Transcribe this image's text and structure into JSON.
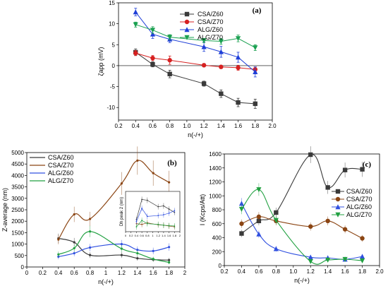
{
  "chart_data": [
    {
      "panel": "(a)",
      "type": "line",
      "xlabel": "n(-/+)",
      "ylabel": "ζapp (mV)",
      "xlim": [
        0.2,
        2.0
      ],
      "ylim": [
        -13,
        15
      ],
      "xticks": [
        0.2,
        0.4,
        0.6,
        0.8,
        1.0,
        1.2,
        1.4,
        1.6,
        1.8,
        2.0
      ],
      "yticks": [
        -10,
        -5,
        0,
        5,
        10,
        15
      ],
      "x": [
        0.4,
        0.6,
        0.8,
        1.2,
        1.4,
        1.6,
        1.8
      ],
      "legend_position": "top-center",
      "zero_line": true,
      "series": [
        {
          "name": "CSA/Z60",
          "color": "#3a3a3a",
          "marker": "square",
          "values": [
            3.2,
            0.3,
            -2.0,
            -4.3,
            -6.7,
            -8.8,
            -9.1
          ],
          "err": [
            0.8,
            0.6,
            0.9,
            0.6,
            0.9,
            1.0,
            1.1
          ]
        },
        {
          "name": "CSA/Z70",
          "color": "#d62020",
          "marker": "circle",
          "values": [
            3.0,
            1.8,
            1.3,
            0.1,
            -0.3,
            -0.5,
            -0.9
          ],
          "err": [
            0.6,
            0.6,
            1.0,
            0.4,
            0.4,
            0.6,
            0.6
          ]
        },
        {
          "name": "ALG/Z60",
          "color": "#1f3fd8",
          "marker": "triangle-up",
          "values": [
            12.8,
            7.5,
            6.3,
            4.5,
            3.3,
            2.0,
            -1.5
          ],
          "err": [
            0.9,
            1.0,
            0.8,
            1.1,
            1.3,
            1.2,
            1.2
          ]
        },
        {
          "name": "ALG/Z70",
          "color": "#1aa050",
          "marker": "triangle-down",
          "values": [
            9.8,
            8.5,
            6.8,
            6.0,
            5.8,
            6.5,
            4.3
          ],
          "err": [
            0.6,
            0.8,
            0.6,
            0.5,
            0.7,
            0.8,
            0.7
          ]
        }
      ]
    },
    {
      "panel": "(b)",
      "type": "line",
      "xlabel": "n(-/+)",
      "ylabel": "Z-average (nm)",
      "xlim": [
        0,
        2
      ],
      "ylim": [
        0,
        5000
      ],
      "xticks": [
        0,
        0.2,
        0.4,
        0.6,
        0.8,
        1.0,
        1.2,
        1.4,
        1.6,
        1.8,
        2.0
      ],
      "xtick_labels": [
        "0",
        "0.2",
        "0.4",
        "0.6",
        "0.8",
        "1",
        "1.2",
        "1.4",
        "1.6",
        "1.8",
        "2"
      ],
      "yticks": [
        0,
        500,
        1000,
        1500,
        2000,
        2500,
        3000,
        3500,
        4000,
        4500,
        5000
      ],
      "x": [
        0.4,
        0.6,
        0.8,
        1.2,
        1.4,
        1.6,
        1.8
      ],
      "legend_position": "top-left",
      "series": [
        {
          "name": "CSA/Z60",
          "color": "#3a3a3a",
          "values": [
            1250,
            1080,
            520,
            520,
            380,
            320,
            300
          ]
        },
        {
          "name": "CSA/Z70",
          "color": "#8b4513",
          "values": [
            1200,
            2300,
            2100,
            3650,
            4650,
            4100,
            3700
          ]
        },
        {
          "name": "ALG/Z60",
          "color": "#3050e0",
          "values": [
            450,
            600,
            850,
            1000,
            750,
            700,
            870
          ]
        },
        {
          "name": "ALG/Z70",
          "color": "#20a040",
          "values": [
            550,
            820,
            1550,
            800,
            600,
            350,
            200
          ]
        }
      ],
      "inset": {
        "ylabel": "Dh peak 2 (nm)",
        "xlim": [
          0,
          2
        ],
        "xticks": [
          0,
          0.2,
          0.4,
          0.6,
          0.8,
          1,
          1.2,
          1.4,
          1.6,
          1.8,
          2
        ],
        "yrange": [
          0,
          1000
        ],
        "series": [
          {
            "color": "#3a3a3a",
            "values": [
              300,
              800,
              780,
              620,
              640,
              560,
              480
            ]
          },
          {
            "color": "#8b4513",
            "values": [
              200,
              180,
              220,
              170,
              160,
              140,
              120
            ]
          },
          {
            "color": "#3050e0",
            "values": [
              250,
              580,
              380,
              400,
              420,
              460,
              520
            ]
          },
          {
            "color": "#20a040",
            "values": [
              120,
              280,
              200,
              180,
              160,
              150,
              140
            ]
          }
        ]
      }
    },
    {
      "panel": "(c)",
      "type": "line",
      "xlabel": "n(-/+)",
      "ylabel": "I (Kcps/Att)",
      "xlim": [
        0.2,
        2.0
      ],
      "ylim": [
        0,
        1600
      ],
      "xticks": [
        0.2,
        0.4,
        0.6,
        0.8,
        1.0,
        1.2,
        1.4,
        1.6,
        1.8,
        2.0
      ],
      "yticks": [
        0,
        200,
        400,
        600,
        800,
        1000,
        1200,
        1400,
        1600
      ],
      "x": [
        0.4,
        0.6,
        0.8,
        1.2,
        1.4,
        1.6,
        1.8
      ],
      "legend_position": "right",
      "series": [
        {
          "name": "CSA/Z60",
          "color": "#3a3a3a",
          "values": [
            460,
            640,
            760,
            1590,
            1120,
            1370,
            1380
          ]
        },
        {
          "name": "CSA/Z70",
          "color": "#8b4513",
          "values": [
            600,
            700,
            640,
            560,
            640,
            520,
            390
          ]
        },
        {
          "name": "ALG/Z60",
          "color": "#3050e0",
          "values": [
            890,
            450,
            240,
            120,
            110,
            90,
            130
          ]
        },
        {
          "name": "ALG/Z70",
          "color": "#20a040",
          "values": [
            810,
            1090,
            650,
            60,
            80,
            90,
            70
          ]
        }
      ]
    }
  ]
}
